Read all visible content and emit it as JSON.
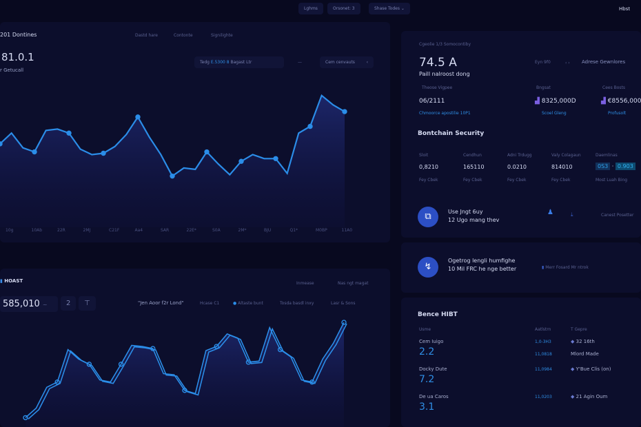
{
  "topbar": {
    "tabs": [
      "Lghms",
      "Orsonet: 3",
      "Shase Todes"
    ],
    "user": "Hbst"
  },
  "main": {
    "title": "201 Dontines",
    "tabs": [
      "Dastd hare",
      "Contonte",
      "Signilighte"
    ],
    "value": "81.0.1",
    "subtitle": "r Getucall",
    "filter_label": "Tedg",
    "filter_value": "E.5300 8",
    "filter_text": "Bagast Ltr",
    "dash": "—",
    "menu": "Cem cenvauts",
    "x_labels": [
      "10g",
      "10Ab",
      "22R",
      "2MJ",
      "C21F",
      "Aa4",
      "SAR",
      "22E*",
      "S0A",
      "2M*",
      "BJU",
      "Q1*",
      "M0BP",
      "11A0"
    ],
    "series": [
      57,
      65,
      54,
      51,
      67,
      68,
      65,
      53,
      49,
      50,
      55,
      64,
      77,
      62,
      49,
      33,
      39,
      38,
      51,
      42,
      34,
      44,
      49,
      46,
      46,
      35,
      65,
      70,
      93,
      86,
      81
    ],
    "accent": "#2b8de8"
  },
  "second": {
    "brand": "HOAST",
    "value": "585,010",
    "badge": "2",
    "sort_label": "Inmease",
    "sort_right": "Nas ngt magat",
    "quote": "\"Jen Aoor f2r Lond\"",
    "legend": [
      "Hcase C1",
      "Altaste bunt",
      "Tosda basdl inxy",
      "Lasr & Sons"
    ],
    "series": [
      5,
      14,
      34,
      39,
      70,
      61,
      56,
      41,
      39,
      56,
      74,
      73,
      71,
      47,
      46,
      31,
      28,
      69,
      73,
      85,
      81,
      58,
      59,
      91,
      70,
      63,
      41,
      39,
      61,
      76,
      96
    ]
  },
  "summary": {
    "caption": "Cgeolie 1/3 Somocontiby",
    "value": "74.5 A",
    "subtitle": "Paill nalroost dong",
    "tag": "Eyn 9f0",
    "menu": "Adrese Gewnlores",
    "cols": [
      {
        "label": "Theose Vigpee",
        "value": "06/2111",
        "link": "Chmoorce apostilie 10P1"
      },
      {
        "label": "Bngsat",
        "value": "8325,000D",
        "link": "Scoel Gleng"
      },
      {
        "label": "Cees Bosts",
        "value": "€8556,000",
        "link": "Profusolt"
      }
    ]
  },
  "security": {
    "title": "Bontchain Security",
    "cols": [
      {
        "label": "Sloit",
        "value": "0,8210",
        "sub": "Fey Cbek"
      },
      {
        "label": "Cendhun",
        "value": "165110",
        "sub": "Fey Cbek"
      },
      {
        "label": "Adni Trdugg",
        "value": "0.0210",
        "sub": "Fey Cbek"
      },
      {
        "label": "Valy Colagaun",
        "value": "814010",
        "sub": "Fey Cbek"
      },
      {
        "label": "Daemlinas",
        "value": "0.903",
        "chip": "0S3",
        "sub": "Most Luah Bing"
      }
    ],
    "row1": {
      "line1": "Use Jngt 6uy",
      "line2": "12 Ugo mang thev",
      "side": "Canest Posetter"
    },
    "row2": {
      "line1": "Ogetrog lengli humfighe",
      "line2": "10 Mil FRC he nge better",
      "side": "Merr Fosard Mr ntrok"
    }
  },
  "table": {
    "title": "Bence HIBT",
    "headers": [
      "Usme",
      "Aatlstrn",
      "T Gepre"
    ],
    "rows": [
      {
        "name": "Cem Iuigo",
        "score": "2.2",
        "code": "1,0-3H3",
        "code2": "11,0818",
        "info": "32 16th",
        "info2": "Mlord Made"
      },
      {
        "name": "Docky Dute",
        "score": "7.2",
        "code": "11,0984",
        "info": "Y'Bue Clis (on)"
      },
      {
        "name": "De ua Caros",
        "score": "3.1",
        "code": "11,0203",
        "info": "21 Agin Oum"
      }
    ]
  }
}
